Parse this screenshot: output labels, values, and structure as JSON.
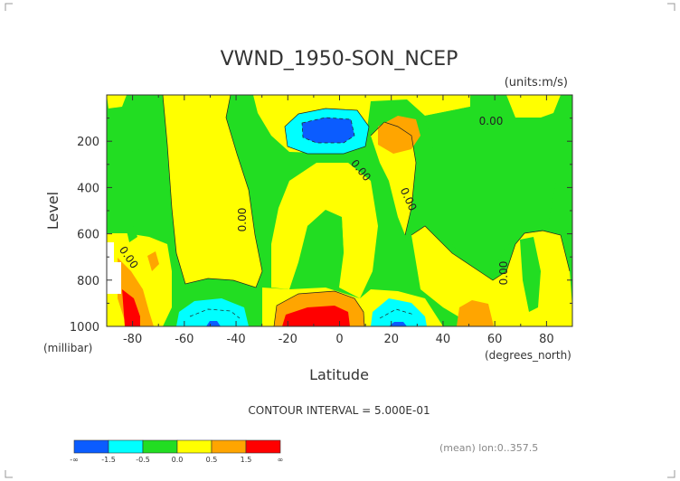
{
  "chart_data": {
    "type": "heatmap",
    "title": "VWND_1950-SON_NCEP",
    "units": "(units:m/s)",
    "xlabel": "Latitude",
    "ylabel": "Level",
    "x_units": "(degrees_north)",
    "y_units": "(millibar)",
    "xlim": [
      -90,
      90
    ],
    "ylim": [
      1000,
      0
    ],
    "x_ticks": [
      "-80",
      "-60",
      "-40",
      "-20",
      "0",
      "20",
      "40",
      "60",
      "80"
    ],
    "x_tick_values": [
      -80,
      -60,
      -40,
      -20,
      0,
      20,
      40,
      60,
      80
    ],
    "y_ticks": [
      "200",
      "400",
      "600",
      "800",
      "1000"
    ],
    "y_tick_values": [
      200,
      400,
      600,
      800,
      1000
    ],
    "contour_interval": "CONTOUR INTERVAL = 5.000E-01",
    "footer": "(mean) lon:0..357.5",
    "contour_labels": [
      "0.00",
      "0.00",
      "0.00",
      "0.00",
      "0.00",
      "0.00"
    ],
    "legend": {
      "labels": [
        "-∞",
        "-1.5",
        "-0.5",
        "0.0",
        "0.5",
        "1.5",
        "∞"
      ],
      "colors": [
        "#0b5cff",
        "#00ffff",
        "#22dd22",
        "#ffff00",
        "#ffa500",
        "#ff0000"
      ]
    },
    "features": [
      {
        "name": "negative core near 150mb",
        "lat": 0,
        "level": 160,
        "value": -1.5
      },
      {
        "name": "positive core near surface",
        "lat": -5,
        "level": 960,
        "value": 1.5
      },
      {
        "name": "positive core far south",
        "lat": -85,
        "level": 950,
        "value": 1.5
      }
    ]
  }
}
